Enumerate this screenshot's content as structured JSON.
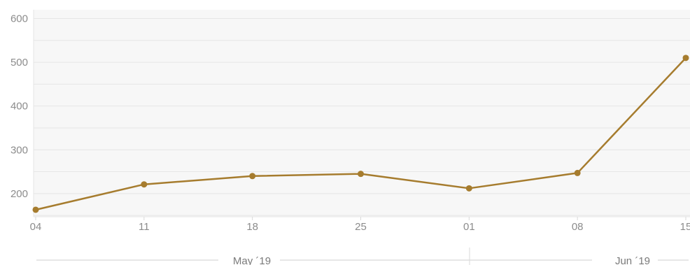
{
  "chart_data": {
    "type": "line",
    "x": [
      "04",
      "11",
      "18",
      "25",
      "01",
      "08",
      "15"
    ],
    "series": [
      {
        "values": [
          163,
          221,
          240,
          245,
          212,
          247,
          510
        ]
      }
    ],
    "ylim": [
      147,
      620
    ],
    "y_ticks": [
      "200",
      "300",
      "400",
      "500",
      "600"
    ],
    "x_groups": [
      {
        "label": "May ´19"
      },
      {
        "label": "Jun ´19"
      }
    ],
    "grid": true,
    "colors": {
      "line": "#a67c2e",
      "plot_bg": "#f7f7f7",
      "grid": "#e6e6e6"
    }
  }
}
